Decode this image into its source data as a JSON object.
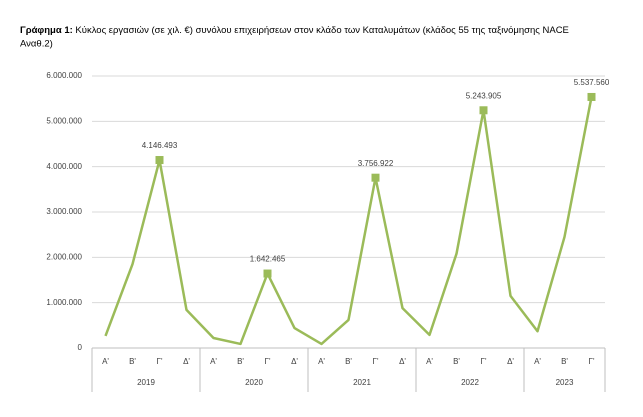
{
  "chart_data": {
    "type": "line",
    "title_label": "Γράφημα 1:",
    "title": "Κύκλος εργασιών (σε χιλ. €) συνόλου επιχειρήσεων στον κλάδο των Καταλυμάτων (κλάδος 55 της ταξινόμησης NACE",
    "title_line2": "Αναθ.2)",
    "categories": [
      "Α'",
      "Β'",
      "Γ'",
      "Δ'",
      "Α'",
      "Β'",
      "Γ'",
      "Δ'",
      "Α'",
      "Β'",
      "Γ'",
      "Δ'",
      "Α'",
      "Β'",
      "Γ'",
      "Δ'",
      "Α'",
      "Β'",
      "Γ'"
    ],
    "groups": [
      {
        "label": "2019",
        "count": 4
      },
      {
        "label": "2020",
        "count": 4
      },
      {
        "label": "2021",
        "count": 4
      },
      {
        "label": "2022",
        "count": 4
      },
      {
        "label": "2023",
        "count": 3
      }
    ],
    "values": [
      265000,
      1850000,
      4146493,
      840000,
      220000,
      90000,
      1642465,
      440000,
      90000,
      620000,
      3756922,
      880000,
      290000,
      2080000,
      5243905,
      1150000,
      370000,
      2450000,
      5537560
    ],
    "value_labels": [
      null,
      null,
      "4.146.493",
      null,
      null,
      null,
      "1.642.465",
      null,
      null,
      null,
      "3.756.922",
      null,
      null,
      null,
      "5.243.905",
      null,
      null,
      null,
      "5.537.560"
    ],
    "color": "#9bbb59",
    "ylim": [
      0,
      6000000
    ],
    "yticks": [
      0,
      {
        "value": 1000000,
        "label": "1.000.000"
      },
      {
        "value": 2000000,
        "label": "2.000.000"
      },
      {
        "value": 3000000,
        "label": "3.000.000"
      },
      {
        "value": 4000000,
        "label": "4.000.000"
      },
      {
        "value": 5000000,
        "label": "5.000.000"
      },
      {
        "value": 6000000,
        "label": "6.000.000"
      }
    ],
    "grid": true
  }
}
